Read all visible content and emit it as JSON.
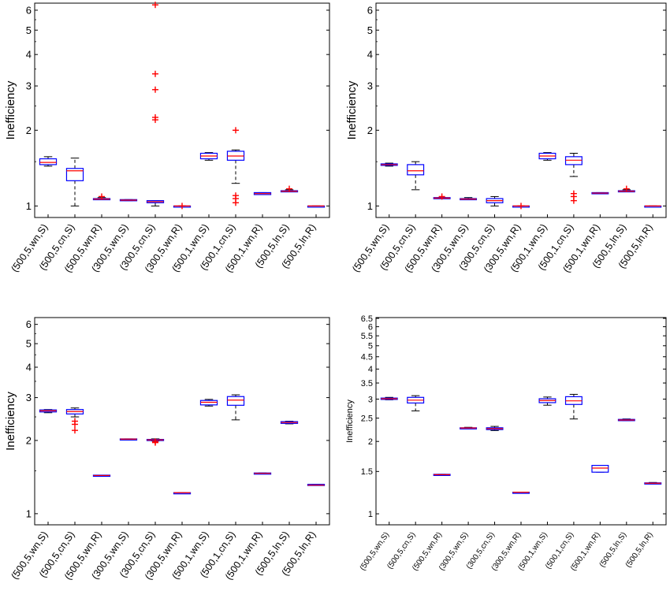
{
  "chart_data": [
    {
      "type": "boxplot",
      "scale": "log",
      "ylabel": "Inefficiency",
      "yticks": [
        "1",
        "2",
        "3",
        "4",
        "5",
        "6"
      ],
      "ylim": [
        0.9,
        6.4
      ],
      "categories": [
        "(500,5,wn,S)",
        "(500,5,cn,S)",
        "(500,5,wn,R)",
        "(300,5,wn,S)",
        "(300,5,cn,S)",
        "(300,5,wn,R)",
        "(500,1,wn,S)",
        "(500,1,cn,S)",
        "(500,1,wn,R)",
        "(500,5,ln,S)",
        "(500,5,ln,R)"
      ],
      "boxes": [
        {
          "wlo": 1.44,
          "q1": 1.46,
          "med": 1.49,
          "q3": 1.54,
          "whi": 1.57,
          "outliers": []
        },
        {
          "wlo": 1.0,
          "q1": 1.26,
          "med": 1.38,
          "q3": 1.41,
          "whi": 1.55,
          "outliers": []
        },
        {
          "wlo": 1.06,
          "q1": 1.06,
          "med": 1.065,
          "q3": 1.07,
          "whi": 1.08,
          "outliers": [
            1.09
          ]
        },
        {
          "wlo": 1.05,
          "q1": 1.05,
          "med": 1.055,
          "q3": 1.06,
          "whi": 1.06,
          "outliers": []
        },
        {
          "wlo": 1.0,
          "q1": 1.03,
          "med": 1.04,
          "q3": 1.05,
          "whi": 1.05,
          "outliers": [
            2.2,
            2.25,
            2.9,
            3.35,
            6.3
          ]
        },
        {
          "wlo": 1.0,
          "q1": 1.0,
          "med": 1.0,
          "q3": 1.0,
          "whi": 1.0,
          "outliers": [
            1.0
          ]
        },
        {
          "wlo": 1.52,
          "q1": 1.54,
          "med": 1.58,
          "q3": 1.62,
          "whi": 1.63,
          "outliers": []
        },
        {
          "wlo": 1.23,
          "q1": 1.52,
          "med": 1.58,
          "q3": 1.65,
          "whi": 1.67,
          "outliers": [
            1.03,
            1.07,
            1.1,
            2.0
          ]
        },
        {
          "wlo": 1.11,
          "q1": 1.11,
          "med": 1.12,
          "q3": 1.13,
          "whi": 1.13,
          "outliers": []
        },
        {
          "wlo": 1.14,
          "q1": 1.14,
          "med": 1.145,
          "q3": 1.15,
          "whi": 1.16,
          "outliers": [
            1.17
          ]
        },
        {
          "wlo": 1.0,
          "q1": 1.0,
          "med": 1.0,
          "q3": 1.0,
          "whi": 1.0,
          "outliers": []
        }
      ]
    },
    {
      "type": "boxplot",
      "scale": "log",
      "ylabel": "Inefficiency",
      "yticks": [
        "1",
        "2",
        "3",
        "4",
        "5",
        "6"
      ],
      "ylim": [
        0.9,
        6.4
      ],
      "categories": [
        "(500,5,wn,S)",
        "(500,5,cn,S)",
        "(500,5,wn,R)",
        "(300,5,wn,S)",
        "(300,5,cn,S)",
        "(300,5,wn,R)",
        "(500,1,wn,S)",
        "(500,1,cn,S)",
        "(500,1,wn,R)",
        "(500,5,ln,S)",
        "(500,5,ln,R)"
      ],
      "boxes": [
        {
          "wlo": 1.44,
          "q1": 1.45,
          "med": 1.46,
          "q3": 1.47,
          "whi": 1.48,
          "outliers": []
        },
        {
          "wlo": 1.16,
          "q1": 1.33,
          "med": 1.38,
          "q3": 1.46,
          "whi": 1.5,
          "outliers": []
        },
        {
          "wlo": 1.07,
          "q1": 1.07,
          "med": 1.075,
          "q3": 1.08,
          "whi": 1.08,
          "outliers": [
            1.09
          ]
        },
        {
          "wlo": 1.06,
          "q1": 1.06,
          "med": 1.065,
          "q3": 1.07,
          "whi": 1.08,
          "outliers": []
        },
        {
          "wlo": 1.0,
          "q1": 1.03,
          "med": 1.05,
          "q3": 1.07,
          "whi": 1.09,
          "outliers": []
        },
        {
          "wlo": 1.0,
          "q1": 1.0,
          "med": 1.0,
          "q3": 1.0,
          "whi": 1.0,
          "outliers": [
            1.0
          ]
        },
        {
          "wlo": 1.52,
          "q1": 1.54,
          "med": 1.58,
          "q3": 1.62,
          "whi": 1.63,
          "outliers": []
        },
        {
          "wlo": 1.31,
          "q1": 1.46,
          "med": 1.52,
          "q3": 1.57,
          "whi": 1.62,
          "outliers": [
            1.05,
            1.09,
            1.12
          ]
        },
        {
          "wlo": 1.12,
          "q1": 1.12,
          "med": 1.125,
          "q3": 1.13,
          "whi": 1.13,
          "outliers": []
        },
        {
          "wlo": 1.14,
          "q1": 1.14,
          "med": 1.145,
          "q3": 1.15,
          "whi": 1.16,
          "outliers": [
            1.17
          ]
        },
        {
          "wlo": 1.0,
          "q1": 1.0,
          "med": 1.0,
          "q3": 1.0,
          "whi": 1.0,
          "outliers": []
        }
      ]
    },
    {
      "type": "boxplot",
      "scale": "log",
      "ylabel": "Inefficiency",
      "yticks": [
        "1",
        "2",
        "3",
        "4",
        "5",
        "6"
      ],
      "ylim": [
        0.9,
        6.4
      ],
      "categories": [
        "(500,5,wn,S)",
        "(500,5,cn,S)",
        "(500,5,wn,R)",
        "(300,5,wn,S)",
        "(300,5,cn,S)",
        "(300,5,wn,R)",
        "(500,1,wn,S)",
        "(500,1,cn,S)",
        "(500,1,wn,R)",
        "(500,5,ln,S)",
        "(500,5,ln,R)"
      ],
      "boxes": [
        {
          "wlo": 2.6,
          "q1": 2.62,
          "med": 2.65,
          "q3": 2.67,
          "whi": 2.68,
          "outliers": []
        },
        {
          "wlo": 2.5,
          "q1": 2.57,
          "med": 2.63,
          "q3": 2.68,
          "whi": 2.72,
          "outliers": [
            2.2,
            2.33,
            2.4
          ]
        },
        {
          "wlo": 1.43,
          "q1": 1.43,
          "med": 1.435,
          "q3": 1.44,
          "whi": 1.44,
          "outliers": []
        },
        {
          "wlo": 2.02,
          "q1": 2.02,
          "med": 2.025,
          "q3": 2.03,
          "whi": 2.03,
          "outliers": []
        },
        {
          "wlo": 1.99,
          "q1": 2.0,
          "med": 2.01,
          "q3": 2.02,
          "whi": 2.03,
          "outliers": [
            1.96,
            1.98
          ]
        },
        {
          "wlo": 1.22,
          "q1": 1.22,
          "med": 1.22,
          "q3": 1.22,
          "whi": 1.22,
          "outliers": []
        },
        {
          "wlo": 2.77,
          "q1": 2.8,
          "med": 2.87,
          "q3": 2.92,
          "whi": 2.95,
          "outliers": []
        },
        {
          "wlo": 2.43,
          "q1": 2.79,
          "med": 2.93,
          "q3": 3.03,
          "whi": 3.08,
          "outliers": []
        },
        {
          "wlo": 1.46,
          "q1": 1.46,
          "med": 1.465,
          "q3": 1.47,
          "whi": 1.47,
          "outliers": []
        },
        {
          "wlo": 2.34,
          "q1": 2.35,
          "med": 2.37,
          "q3": 2.39,
          "whi": 2.4,
          "outliers": []
        },
        {
          "wlo": 1.31,
          "q1": 1.31,
          "med": 1.31,
          "q3": 1.32,
          "whi": 1.32,
          "outliers": []
        }
      ]
    },
    {
      "type": "boxplot",
      "scale": "log",
      "ylabel": "Inefficiency",
      "yticks": [
        "1",
        "1.5",
        "2",
        "2.5",
        "3",
        "3.5",
        "4",
        "4.5",
        "5",
        "5.5",
        "6",
        "6.5"
      ],
      "ylim": [
        0.9,
        6.55
      ],
      "categories": [
        "(500,5,wn,S)",
        "(500,5,cn,S)",
        "(500,5,wn,R)",
        "(300,5,wn,S)",
        "(300,5,cn,S)",
        "(300,5,wn,R)",
        "(500,1,wn,S)",
        "(500,1,cn,S)",
        "(500,1,wn,R)",
        "(500,5,ln,S)",
        "(500,5,ln,R)"
      ],
      "boxes": [
        {
          "wlo": 2.98,
          "q1": 2.99,
          "med": 3.01,
          "q3": 3.03,
          "whi": 3.05,
          "outliers": []
        },
        {
          "wlo": 2.68,
          "q1": 2.89,
          "med": 2.97,
          "q3": 3.05,
          "whi": 3.1,
          "outliers": []
        },
        {
          "wlo": 1.45,
          "q1": 1.45,
          "med": 1.455,
          "q3": 1.46,
          "whi": 1.46,
          "outliers": []
        },
        {
          "wlo": 2.26,
          "q1": 2.27,
          "med": 2.275,
          "q3": 2.28,
          "whi": 2.29,
          "outliers": []
        },
        {
          "wlo": 2.22,
          "q1": 2.24,
          "med": 2.26,
          "q3": 2.28,
          "whi": 2.31,
          "outliers": []
        },
        {
          "wlo": 1.23,
          "q1": 1.23,
          "med": 1.23,
          "q3": 1.23,
          "whi": 1.23,
          "outliers": []
        },
        {
          "wlo": 2.83,
          "q1": 2.9,
          "med": 2.96,
          "q3": 3.01,
          "whi": 3.06,
          "outliers": []
        },
        {
          "wlo": 2.48,
          "q1": 2.85,
          "med": 2.95,
          "q3": 3.07,
          "whi": 3.14,
          "outliers": []
        },
        {
          "wlo": 1.49,
          "q1": 1.49,
          "med": 1.55,
          "q3": 1.59,
          "whi": 1.59,
          "outliers": []
        },
        {
          "wlo": 2.44,
          "q1": 2.44,
          "med": 2.455,
          "q3": 2.47,
          "whi": 2.48,
          "outliers": []
        },
        {
          "wlo": 1.34,
          "q1": 1.34,
          "med": 1.34,
          "q3": 1.345,
          "whi": 1.35,
          "outliers": []
        }
      ]
    }
  ],
  "colors": {
    "box": "#0000ff",
    "median": "#ff0000",
    "whisker": "#000000",
    "outlier": "#ff0000",
    "axes": "#000000"
  }
}
